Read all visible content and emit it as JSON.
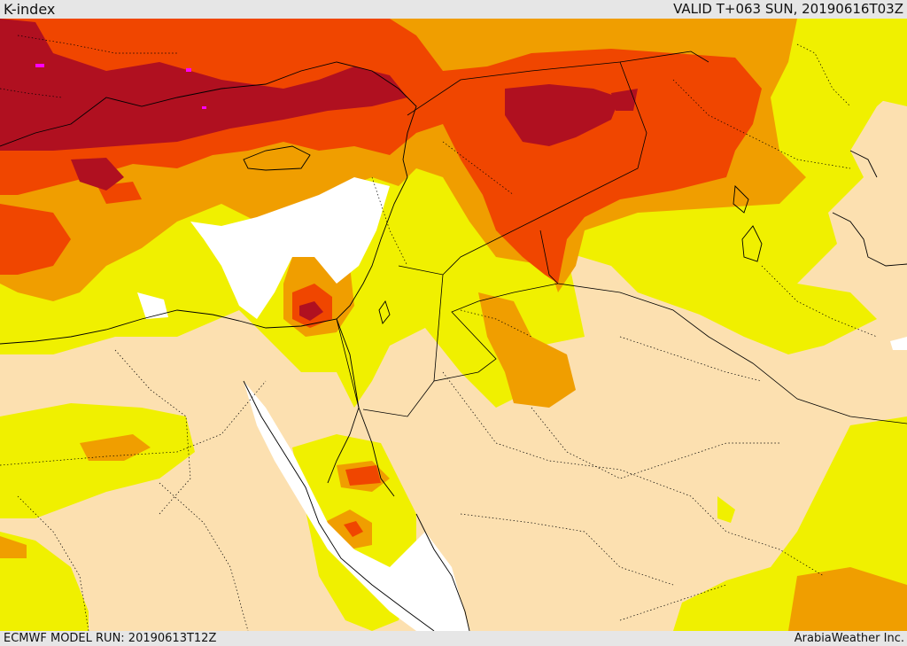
{
  "header": {
    "product_title": "K-index",
    "valid_time": "VALID T+063 SUN, 20190616T03Z"
  },
  "footer": {
    "model_run": "ECMWF MODEL RUN: 20190613T12Z",
    "credit": "ArabiaWeather Inc."
  },
  "map": {
    "region": "Eastern Mediterranean, Levant, Iraq, northern Saudi Arabia, Egypt and Red Sea",
    "colors": {
      "no_data": "#ffffff",
      "level_1": "#fce0b0",
      "level_2": "#f0f000",
      "level_3": "#f09e00",
      "level_4": "#f04600",
      "level_5": "#b01020",
      "peak": "#ff00ff",
      "border": "#000000"
    }
  }
}
